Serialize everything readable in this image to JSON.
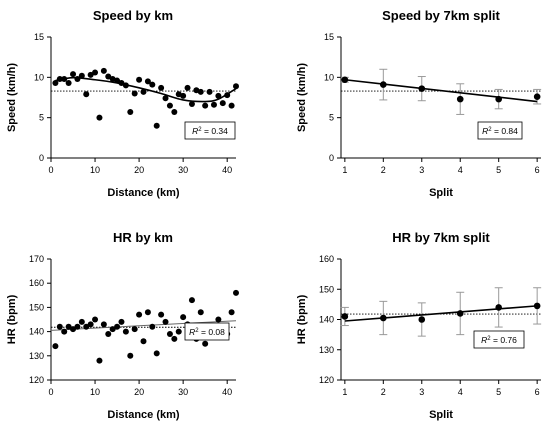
{
  "chart_data": [
    {
      "type": "scatter",
      "title": "Speed by km",
      "xlabel": "Distance (km)",
      "ylabel": "Speed (km/h)",
      "xlim": [
        0,
        42
      ],
      "ylim": [
        0,
        15
      ],
      "xticks": [
        0,
        10,
        20,
        30,
        40
      ],
      "yticks": [
        0,
        5,
        10,
        15
      ],
      "r2_label": "0.34",
      "ref_line_y": 8.3,
      "points": [
        [
          1,
          9.3
        ],
        [
          2,
          9.8
        ],
        [
          3,
          9.8
        ],
        [
          4,
          9.3
        ],
        [
          5,
          10.4
        ],
        [
          6,
          9.8
        ],
        [
          7,
          10.2
        ],
        [
          8,
          7.9
        ],
        [
          9,
          10.3
        ],
        [
          10,
          10.6
        ],
        [
          11,
          5.0
        ],
        [
          12,
          10.8
        ],
        [
          13,
          10.1
        ],
        [
          14,
          9.8
        ],
        [
          15,
          9.6
        ],
        [
          16,
          9.3
        ],
        [
          17,
          9.0
        ],
        [
          18,
          5.7
        ],
        [
          19,
          8.0
        ],
        [
          20,
          9.7
        ],
        [
          21,
          8.2
        ],
        [
          22,
          9.5
        ],
        [
          23,
          9.1
        ],
        [
          24,
          4.0
        ],
        [
          25,
          8.7
        ],
        [
          26,
          7.4
        ],
        [
          27,
          6.5
        ],
        [
          28,
          5.7
        ],
        [
          29,
          7.9
        ],
        [
          30,
          7.7
        ],
        [
          31,
          8.7
        ],
        [
          32,
          6.7
        ],
        [
          33,
          8.4
        ],
        [
          34,
          8.2
        ],
        [
          35,
          6.5
        ],
        [
          36,
          8.2
        ],
        [
          37,
          6.6
        ],
        [
          38,
          7.7
        ],
        [
          39,
          6.8
        ],
        [
          40,
          7.8
        ],
        [
          41,
          6.5
        ],
        [
          42,
          8.9
        ]
      ],
      "fit_curve": [
        [
          1,
          9.6
        ],
        [
          5,
          9.95
        ],
        [
          10,
          9.7
        ],
        [
          15,
          9.3
        ],
        [
          20,
          8.7
        ],
        [
          25,
          8.0
        ],
        [
          30,
          7.2
        ],
        [
          35,
          7.0
        ],
        [
          38,
          7.3
        ],
        [
          42,
          8.6
        ]
      ]
    },
    {
      "type": "scatter",
      "title": "Speed by 7km split",
      "xlabel": "Split",
      "ylabel": "Speed (km/h)",
      "xlim": [
        0.9,
        6.1
      ],
      "ylim": [
        0,
        15
      ],
      "xticks": [
        1,
        2,
        3,
        4,
        5,
        6
      ],
      "yticks": [
        0,
        5,
        10,
        15
      ],
      "r2_label": "0.84",
      "ref_line_y": 8.3,
      "points": [
        [
          1,
          9.7
        ],
        [
          2,
          9.1
        ],
        [
          3,
          8.6
        ],
        [
          4,
          7.3
        ],
        [
          5,
          7.3
        ],
        [
          6,
          7.6
        ]
      ],
      "error": [
        0.3,
        1.9,
        1.5,
        1.9,
        1.2,
        0.9
      ],
      "fit_line": [
        [
          1,
          9.7
        ],
        [
          6,
          7.0
        ]
      ]
    },
    {
      "type": "scatter",
      "title": "HR by km",
      "xlabel": "Distance (km)",
      "ylabel": "HR (bpm)",
      "xlim": [
        0,
        42
      ],
      "ylim": [
        120,
        170
      ],
      "xticks": [
        0,
        10,
        20,
        30,
        40
      ],
      "yticks": [
        120,
        130,
        140,
        150,
        160,
        170
      ],
      "r2_label": "0.08",
      "ref_line_y": 141.8,
      "points": [
        [
          1,
          134
        ],
        [
          2,
          142
        ],
        [
          3,
          140
        ],
        [
          4,
          142
        ],
        [
          5,
          141
        ],
        [
          6,
          142
        ],
        [
          7,
          144
        ],
        [
          8,
          142
        ],
        [
          9,
          143
        ],
        [
          10,
          145
        ],
        [
          11,
          128
        ],
        [
          12,
          143
        ],
        [
          13,
          139
        ],
        [
          14,
          141
        ],
        [
          15,
          142
        ],
        [
          16,
          144
        ],
        [
          17,
          140
        ],
        [
          18,
          130
        ],
        [
          19,
          141
        ],
        [
          20,
          147
        ],
        [
          21,
          136
        ],
        [
          22,
          148
        ],
        [
          23,
          142
        ],
        [
          24,
          131
        ],
        [
          25,
          147
        ],
        [
          26,
          144
        ],
        [
          27,
          139
        ],
        [
          28,
          137
        ],
        [
          29,
          140
        ],
        [
          30,
          146
        ],
        [
          31,
          143
        ],
        [
          32,
          153
        ],
        [
          33,
          137
        ],
        [
          34,
          148
        ],
        [
          35,
          135
        ],
        [
          36,
          142
        ],
        [
          37,
          140
        ],
        [
          38,
          145
        ],
        [
          39,
          141
        ],
        [
          40,
          139
        ],
        [
          41,
          148
        ],
        [
          42,
          156
        ]
      ],
      "fit_line": [
        [
          0,
          140.5
        ],
        [
          42,
          144.5
        ]
      ]
    },
    {
      "type": "scatter",
      "title": "HR by 7km split",
      "xlabel": "Split",
      "ylabel": "HR (bpm)",
      "xlim": [
        0.9,
        6.1
      ],
      "ylim": [
        120,
        160
      ],
      "xticks": [
        1,
        2,
        3,
        4,
        5,
        6
      ],
      "yticks": [
        120,
        130,
        140,
        150,
        160
      ],
      "r2_label": "0.76",
      "ref_line_y": 141.8,
      "points": [
        [
          1,
          141
        ],
        [
          2,
          140.5
        ],
        [
          3,
          140
        ],
        [
          4,
          142
        ],
        [
          5,
          144
        ],
        [
          6,
          144.5
        ]
      ],
      "error": [
        3,
        5.5,
        5.5,
        7,
        6.5,
        6
      ],
      "fit_line": [
        [
          1,
          139.5
        ],
        [
          6,
          144.5
        ]
      ]
    }
  ]
}
